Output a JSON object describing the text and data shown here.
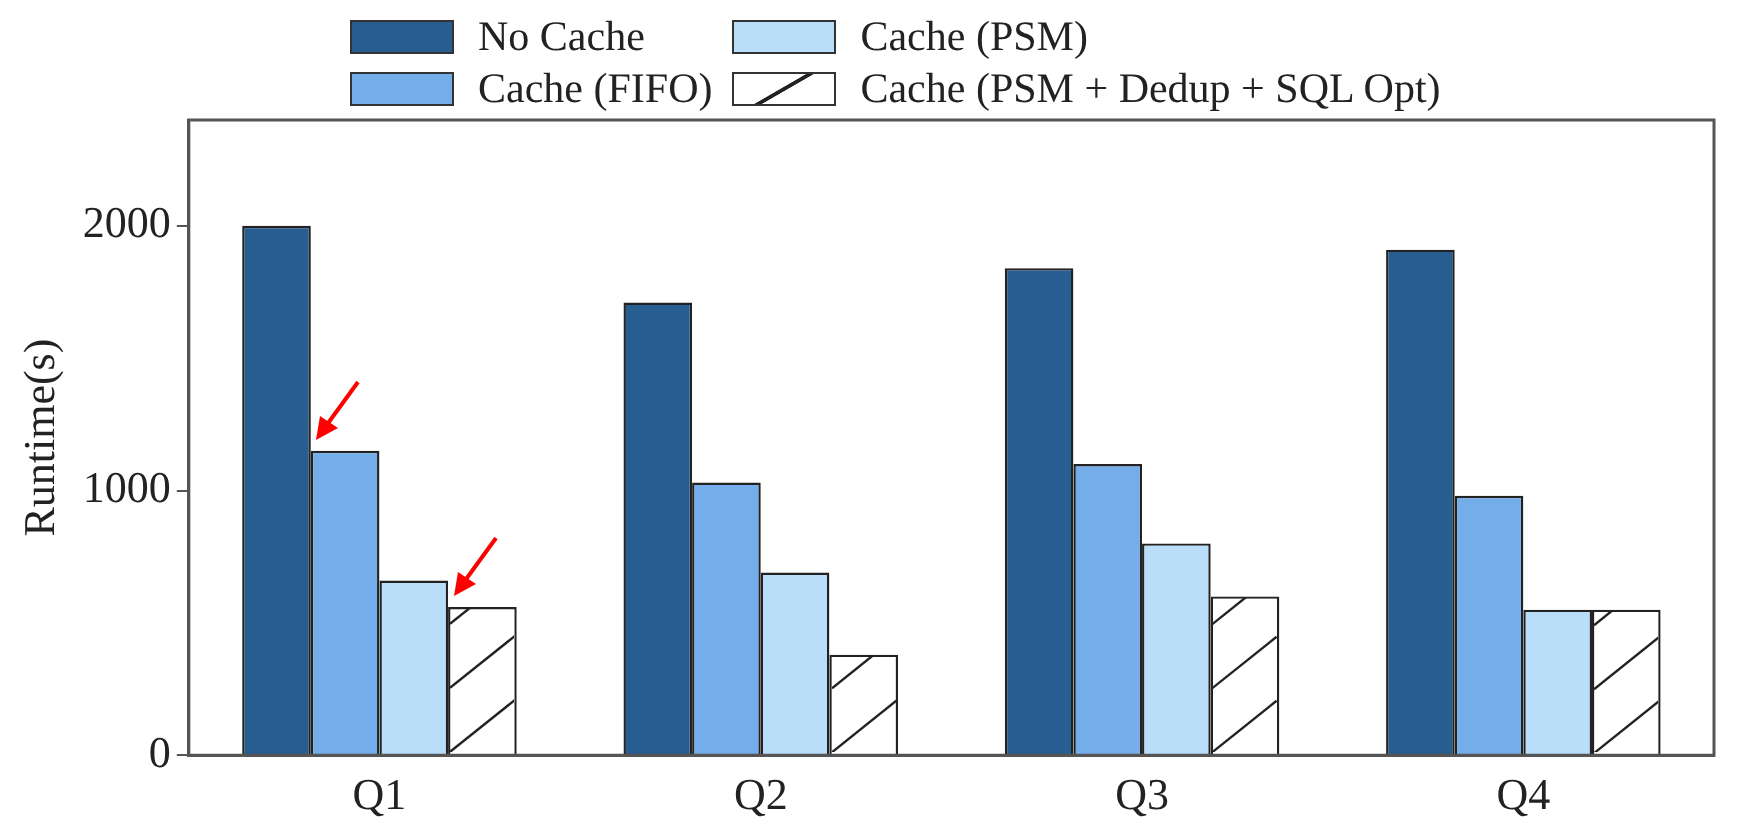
{
  "chart_data": {
    "type": "bar",
    "ylabel": "Runtime(s)",
    "categories": [
      "Q1",
      "Q2",
      "Q3",
      "Q4"
    ],
    "series": [
      {
        "name": "No Cache",
        "color": "#275d91",
        "values": [
          2000,
          1710,
          1840,
          1910
        ]
      },
      {
        "name": "Cache (FIFO)",
        "color": "#74aeea",
        "values": [
          1150,
          1030,
          1100,
          980
        ]
      },
      {
        "name": "Cache (PSM)",
        "color": "#b8defa",
        "values": [
          660,
          690,
          800,
          550
        ]
      },
      {
        "name": "Cache (PSM + Dedup + SQL Opt)",
        "color": "#ffffff",
        "values": [
          560,
          380,
          600,
          550
        ]
      }
    ],
    "ylim": [
      0,
      2400
    ],
    "yticks": [
      0,
      1000,
      2000
    ],
    "grid": false,
    "legend": "top"
  }
}
